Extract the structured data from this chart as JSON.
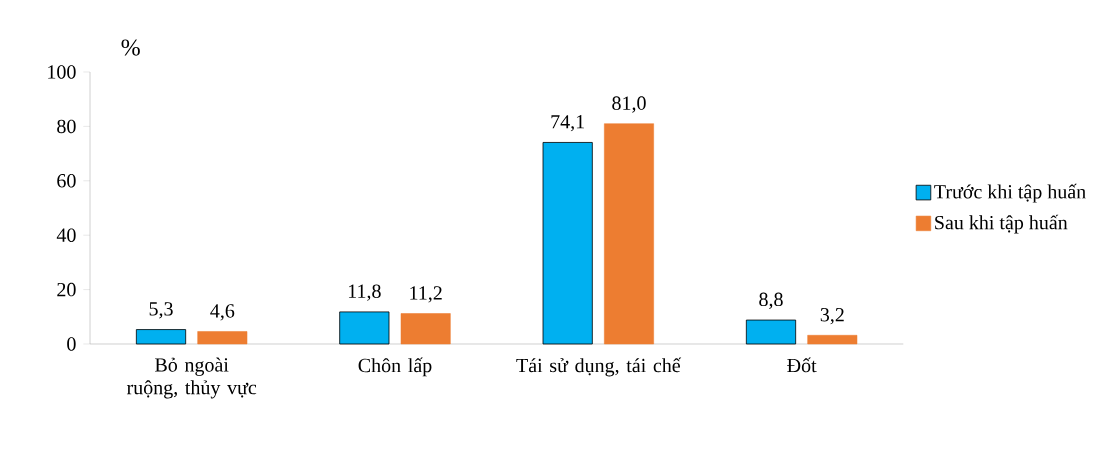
{
  "chart_data": {
    "type": "bar",
    "ylabel": "%",
    "categories": [
      "Bỏ ngoài ruộng, thủy vực",
      "Chôn lấp",
      "Tái sử dụng, tái chế",
      "Đốt"
    ],
    "series": [
      {
        "name": "Trước khi tập huấn",
        "color": "#00b0f0",
        "values": [
          5.3,
          11.8,
          74.1,
          8.8
        ],
        "value_labels": [
          "5,3",
          "11,8",
          "74,1",
          "8,8"
        ]
      },
      {
        "name": "Sau khi tập huấn",
        "color": "#ed7d31",
        "values": [
          4.6,
          11.2,
          81.0,
          3.2
        ],
        "value_labels": [
          "4,6",
          "11,2",
          "81,0",
          "3,2"
        ]
      }
    ],
    "ylim": [
      0,
      100
    ],
    "yticks": [
      0,
      20,
      40,
      60,
      80,
      100
    ],
    "legend": "right"
  }
}
